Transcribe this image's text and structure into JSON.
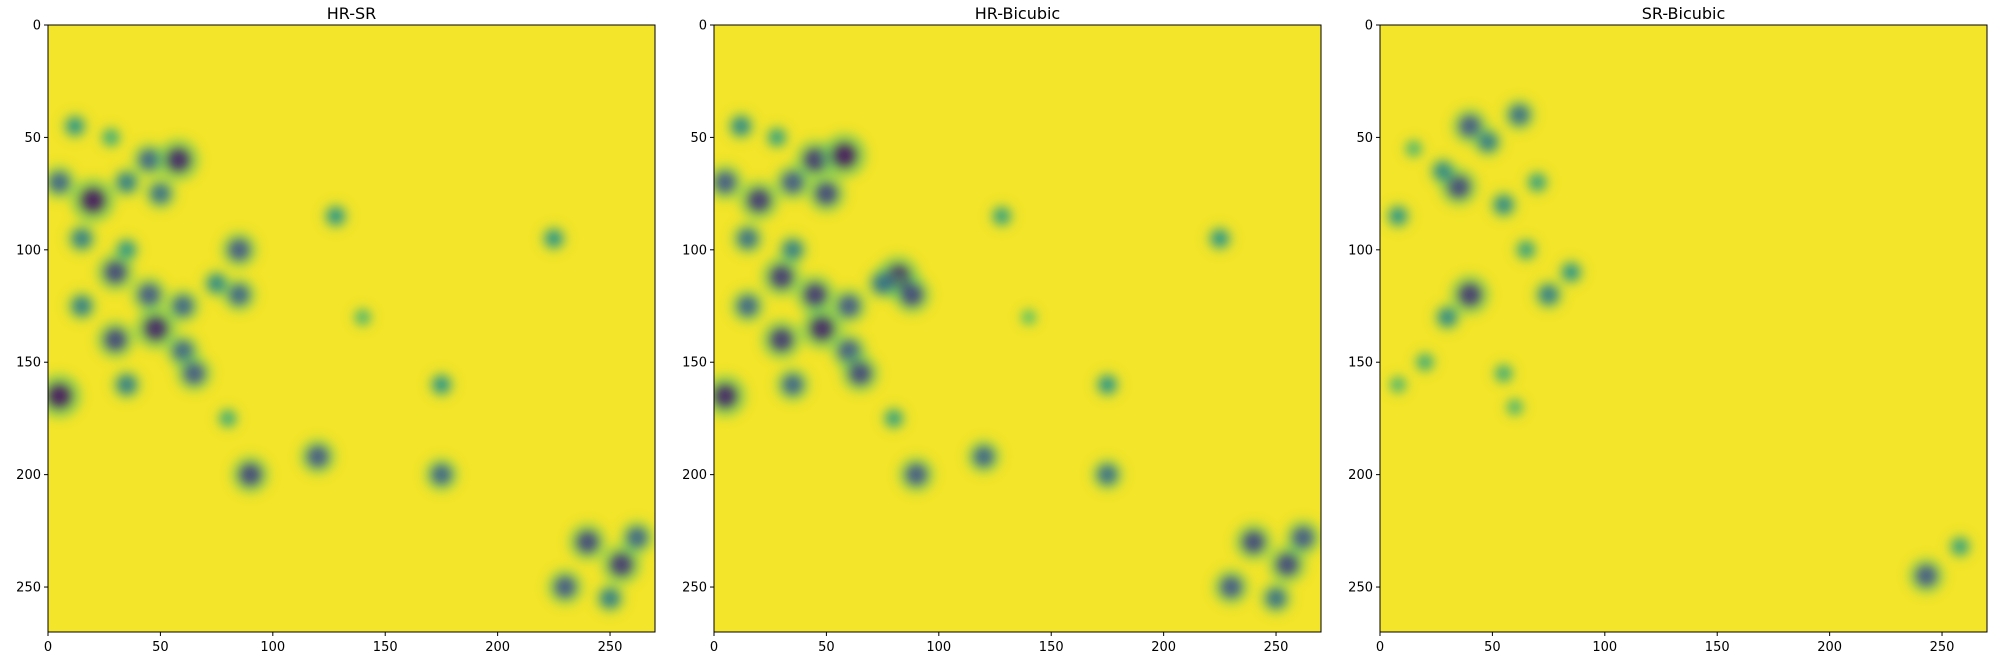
{
  "chart_data": [
    {
      "type": "heatmap",
      "title": "HR-SR",
      "colormap": "viridis",
      "xlim": [
        0,
        270
      ],
      "ylim": [
        270,
        0
      ],
      "x_ticks": [
        0,
        50,
        100,
        150,
        200,
        250
      ],
      "y_ticks": [
        0,
        50,
        100,
        150,
        200,
        250
      ],
      "blobs": [
        {
          "x": 5,
          "y": 70,
          "v": 0.7
        },
        {
          "x": 15,
          "y": 95,
          "v": 0.6
        },
        {
          "x": 20,
          "y": 78,
          "v": 0.95
        },
        {
          "x": 35,
          "y": 70,
          "v": 0.6
        },
        {
          "x": 45,
          "y": 60,
          "v": 0.7
        },
        {
          "x": 58,
          "y": 60,
          "v": 0.9
        },
        {
          "x": 50,
          "y": 75,
          "v": 0.65
        },
        {
          "x": 35,
          "y": 100,
          "v": 0.5
        },
        {
          "x": 30,
          "y": 110,
          "v": 0.8
        },
        {
          "x": 45,
          "y": 120,
          "v": 0.75
        },
        {
          "x": 48,
          "y": 135,
          "v": 0.9
        },
        {
          "x": 30,
          "y": 140,
          "v": 0.8
        },
        {
          "x": 15,
          "y": 125,
          "v": 0.6
        },
        {
          "x": 60,
          "y": 145,
          "v": 0.7
        },
        {
          "x": 65,
          "y": 155,
          "v": 0.75
        },
        {
          "x": 35,
          "y": 160,
          "v": 0.6
        },
        {
          "x": 5,
          "y": 165,
          "v": 0.95
        },
        {
          "x": 85,
          "y": 100,
          "v": 0.75
        },
        {
          "x": 85,
          "y": 120,
          "v": 0.7
        },
        {
          "x": 75,
          "y": 115,
          "v": 0.55
        },
        {
          "x": 60,
          "y": 125,
          "v": 0.7
        },
        {
          "x": 90,
          "y": 200,
          "v": 0.8
        },
        {
          "x": 120,
          "y": 192,
          "v": 0.75
        },
        {
          "x": 128,
          "y": 85,
          "v": 0.5
        },
        {
          "x": 175,
          "y": 200,
          "v": 0.7
        },
        {
          "x": 175,
          "y": 160,
          "v": 0.5
        },
        {
          "x": 225,
          "y": 95,
          "v": 0.5
        },
        {
          "x": 240,
          "y": 230,
          "v": 0.8
        },
        {
          "x": 255,
          "y": 240,
          "v": 0.85
        },
        {
          "x": 230,
          "y": 250,
          "v": 0.75
        },
        {
          "x": 262,
          "y": 228,
          "v": 0.7
        },
        {
          "x": 250,
          "y": 255,
          "v": 0.6
        },
        {
          "x": 12,
          "y": 45,
          "v": 0.5
        },
        {
          "x": 28,
          "y": 50,
          "v": 0.4
        },
        {
          "x": 80,
          "y": 175,
          "v": 0.4
        },
        {
          "x": 140,
          "y": 130,
          "v": 0.35
        }
      ]
    },
    {
      "type": "heatmap",
      "title": "HR-Bicubic",
      "colormap": "viridis",
      "xlim": [
        0,
        270
      ],
      "ylim": [
        270,
        0
      ],
      "x_ticks": [
        0,
        50,
        100,
        150,
        200,
        250
      ],
      "y_ticks": [
        0,
        50,
        100,
        150,
        200,
        250
      ],
      "blobs": [
        {
          "x": 5,
          "y": 70,
          "v": 0.75
        },
        {
          "x": 15,
          "y": 95,
          "v": 0.65
        },
        {
          "x": 20,
          "y": 78,
          "v": 0.85
        },
        {
          "x": 35,
          "y": 70,
          "v": 0.75
        },
        {
          "x": 45,
          "y": 60,
          "v": 0.85
        },
        {
          "x": 58,
          "y": 58,
          "v": 0.95
        },
        {
          "x": 50,
          "y": 75,
          "v": 0.8
        },
        {
          "x": 35,
          "y": 100,
          "v": 0.6
        },
        {
          "x": 30,
          "y": 112,
          "v": 0.85
        },
        {
          "x": 45,
          "y": 120,
          "v": 0.85
        },
        {
          "x": 48,
          "y": 135,
          "v": 0.9
        },
        {
          "x": 30,
          "y": 140,
          "v": 0.85
        },
        {
          "x": 15,
          "y": 125,
          "v": 0.7
        },
        {
          "x": 60,
          "y": 145,
          "v": 0.75
        },
        {
          "x": 65,
          "y": 155,
          "v": 0.8
        },
        {
          "x": 35,
          "y": 160,
          "v": 0.7
        },
        {
          "x": 5,
          "y": 165,
          "v": 0.9
        },
        {
          "x": 82,
          "y": 112,
          "v": 0.9
        },
        {
          "x": 88,
          "y": 120,
          "v": 0.8
        },
        {
          "x": 75,
          "y": 115,
          "v": 0.65
        },
        {
          "x": 60,
          "y": 125,
          "v": 0.75
        },
        {
          "x": 90,
          "y": 200,
          "v": 0.75
        },
        {
          "x": 120,
          "y": 192,
          "v": 0.7
        },
        {
          "x": 128,
          "y": 85,
          "v": 0.45
        },
        {
          "x": 175,
          "y": 200,
          "v": 0.65
        },
        {
          "x": 175,
          "y": 160,
          "v": 0.5
        },
        {
          "x": 225,
          "y": 95,
          "v": 0.5
        },
        {
          "x": 240,
          "y": 230,
          "v": 0.8
        },
        {
          "x": 255,
          "y": 240,
          "v": 0.8
        },
        {
          "x": 230,
          "y": 250,
          "v": 0.75
        },
        {
          "x": 262,
          "y": 228,
          "v": 0.75
        },
        {
          "x": 250,
          "y": 255,
          "v": 0.65
        },
        {
          "x": 12,
          "y": 45,
          "v": 0.55
        },
        {
          "x": 28,
          "y": 50,
          "v": 0.45
        },
        {
          "x": 80,
          "y": 175,
          "v": 0.45
        },
        {
          "x": 140,
          "y": 130,
          "v": 0.3
        }
      ]
    },
    {
      "type": "heatmap",
      "title": "SR-Bicubic",
      "colormap": "viridis",
      "xlim": [
        0,
        270
      ],
      "ylim": [
        270,
        0
      ],
      "x_ticks": [
        0,
        50,
        100,
        150,
        200,
        250
      ],
      "y_ticks": [
        0,
        50,
        100,
        150,
        200,
        250
      ],
      "blobs": [
        {
          "x": 40,
          "y": 45,
          "v": 0.75
        },
        {
          "x": 48,
          "y": 52,
          "v": 0.6
        },
        {
          "x": 62,
          "y": 40,
          "v": 0.65
        },
        {
          "x": 35,
          "y": 72,
          "v": 0.8
        },
        {
          "x": 28,
          "y": 65,
          "v": 0.55
        },
        {
          "x": 55,
          "y": 80,
          "v": 0.55
        },
        {
          "x": 70,
          "y": 70,
          "v": 0.45
        },
        {
          "x": 8,
          "y": 85,
          "v": 0.5
        },
        {
          "x": 40,
          "y": 120,
          "v": 0.85
        },
        {
          "x": 30,
          "y": 130,
          "v": 0.55
        },
        {
          "x": 75,
          "y": 120,
          "v": 0.6
        },
        {
          "x": 85,
          "y": 110,
          "v": 0.5
        },
        {
          "x": 65,
          "y": 100,
          "v": 0.45
        },
        {
          "x": 20,
          "y": 150,
          "v": 0.4
        },
        {
          "x": 55,
          "y": 155,
          "v": 0.4
        },
        {
          "x": 60,
          "y": 170,
          "v": 0.35
        },
        {
          "x": 8,
          "y": 160,
          "v": 0.35
        },
        {
          "x": 243,
          "y": 245,
          "v": 0.75
        },
        {
          "x": 258,
          "y": 232,
          "v": 0.45
        },
        {
          "x": 15,
          "y": 55,
          "v": 0.35
        }
      ]
    }
  ]
}
